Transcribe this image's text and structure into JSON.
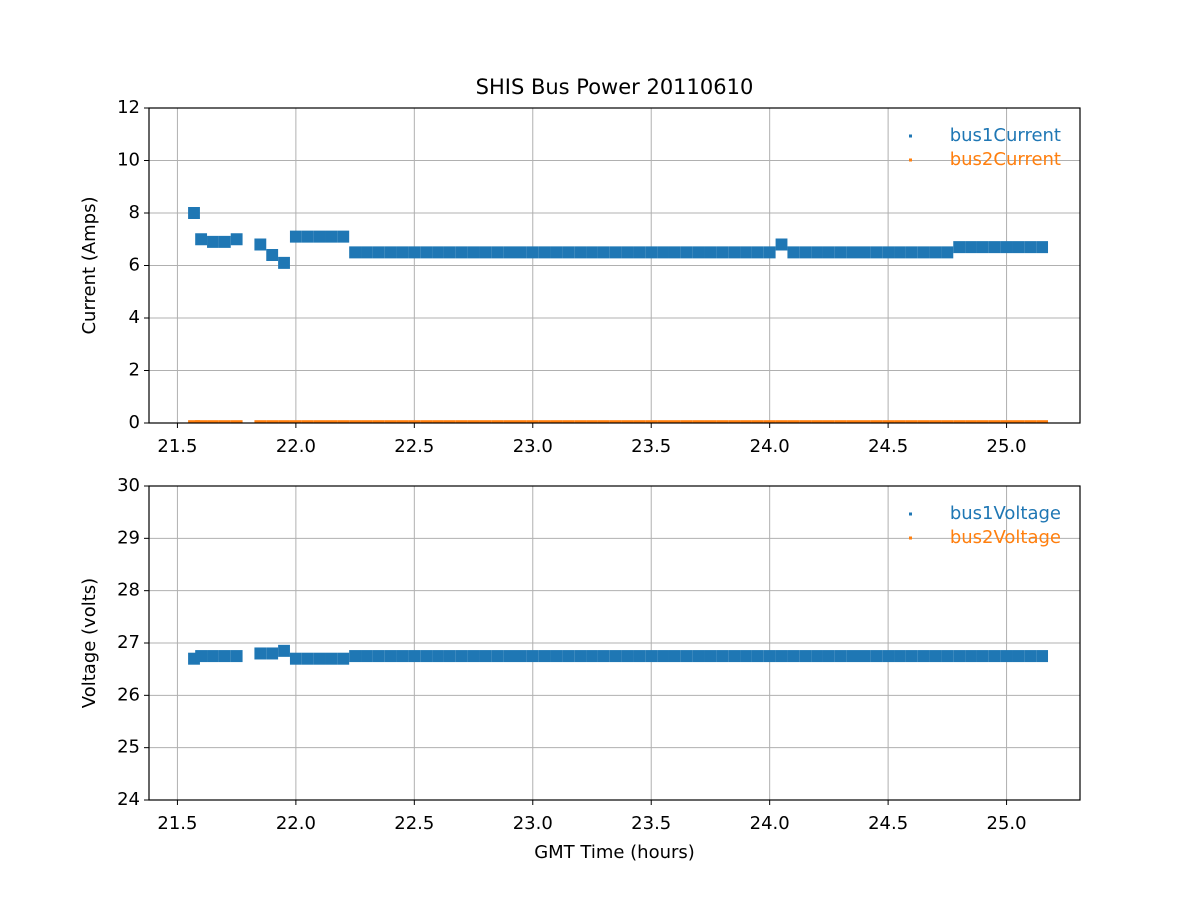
{
  "chart_data": [
    {
      "type": "scatter",
      "title": "SHIS Bus Power 20110610",
      "ylabel": "Current (Amps)",
      "x": [
        21.57,
        21.6,
        21.65,
        21.7,
        21.75,
        21.85,
        21.9,
        21.95,
        22.0,
        22.05,
        22.1,
        22.15,
        22.2,
        22.25,
        22.3,
        22.35,
        22.4,
        22.45,
        22.5,
        22.55,
        22.6,
        22.65,
        22.7,
        22.75,
        22.8,
        22.85,
        22.9,
        22.95,
        23.0,
        23.05,
        23.1,
        23.15,
        23.2,
        23.25,
        23.3,
        23.35,
        23.4,
        23.45,
        23.5,
        23.55,
        23.6,
        23.65,
        23.7,
        23.75,
        23.8,
        23.85,
        23.9,
        23.95,
        24.0,
        24.05,
        24.1,
        24.15,
        24.2,
        24.25,
        24.3,
        24.35,
        24.4,
        24.45,
        24.5,
        24.55,
        24.6,
        24.65,
        24.7,
        24.75,
        24.8,
        24.85,
        24.9,
        24.95,
        25.0,
        25.05,
        25.1,
        25.15
      ],
      "series": [
        {
          "name": "bus1Current",
          "color": "#1f77b4",
          "values": [
            8.0,
            7.0,
            6.9,
            6.9,
            7.0,
            6.8,
            6.4,
            6.1,
            7.1,
            7.1,
            7.1,
            7.1,
            7.1,
            6.5,
            6.5,
            6.5,
            6.5,
            6.5,
            6.5,
            6.5,
            6.5,
            6.5,
            6.5,
            6.5,
            6.5,
            6.5,
            6.5,
            6.5,
            6.5,
            6.5,
            6.5,
            6.5,
            6.5,
            6.5,
            6.5,
            6.5,
            6.5,
            6.5,
            6.5,
            6.5,
            6.5,
            6.5,
            6.5,
            6.5,
            6.5,
            6.5,
            6.5,
            6.5,
            6.5,
            6.8,
            6.5,
            6.5,
            6.5,
            6.5,
            6.5,
            6.5,
            6.5,
            6.5,
            6.5,
            6.5,
            6.5,
            6.5,
            6.5,
            6.5,
            6.7,
            6.7,
            6.7,
            6.7,
            6.7,
            6.7,
            6.7,
            6.7
          ]
        },
        {
          "name": "bus2Current",
          "color": "#ff7f0e",
          "values": [
            0.05,
            0.05,
            0.05,
            0.05,
            0.05,
            0.05,
            0.05,
            0.05,
            0.05,
            0.05,
            0.05,
            0.05,
            0.05,
            0.05,
            0.05,
            0.05,
            0.05,
            0.05,
            0.05,
            0.05,
            0.05,
            0.05,
            0.05,
            0.05,
            0.05,
            0.05,
            0.05,
            0.05,
            0.05,
            0.05,
            0.05,
            0.05,
            0.05,
            0.05,
            0.05,
            0.05,
            0.05,
            0.05,
            0.05,
            0.05,
            0.05,
            0.05,
            0.05,
            0.05,
            0.05,
            0.05,
            0.05,
            0.05,
            0.05,
            0.05,
            0.05,
            0.05,
            0.05,
            0.05,
            0.05,
            0.05,
            0.05,
            0.05,
            0.05,
            0.05,
            0.05,
            0.05,
            0.05,
            0.05,
            0.05,
            0.05,
            0.05,
            0.05,
            0.05,
            0.05,
            0.05,
            0.05
          ]
        }
      ],
      "xlim": [
        21.38,
        25.31
      ],
      "xticks": [
        21.5,
        {
          "value": 22,
          "label": "22.0"
        },
        22.5,
        {
          "value": 23,
          "label": "23.0"
        },
        23.5,
        {
          "value": 24,
          "label": "24.0"
        },
        24.5,
        {
          "value": 25,
          "label": "25.0"
        }
      ],
      "ylim": [
        0,
        12
      ],
      "yticks": [
        0,
        2,
        4,
        6,
        8,
        10,
        12
      ],
      "grid": true,
      "legend": "upper right"
    },
    {
      "type": "scatter",
      "xlabel": "GMT Time (hours)",
      "ylabel": "Voltage (volts)",
      "x": [
        21.57,
        21.6,
        21.65,
        21.7,
        21.75,
        21.85,
        21.9,
        21.95,
        22.0,
        22.05,
        22.1,
        22.15,
        22.2,
        22.25,
        22.3,
        22.35,
        22.4,
        22.45,
        22.5,
        22.55,
        22.6,
        22.65,
        22.7,
        22.75,
        22.8,
        22.85,
        22.9,
        22.95,
        23.0,
        23.05,
        23.1,
        23.15,
        23.2,
        23.25,
        23.3,
        23.35,
        23.4,
        23.45,
        23.5,
        23.55,
        23.6,
        23.65,
        23.7,
        23.75,
        23.8,
        23.85,
        23.9,
        23.95,
        24.0,
        24.05,
        24.1,
        24.15,
        24.2,
        24.25,
        24.3,
        24.35,
        24.4,
        24.45,
        24.5,
        24.55,
        24.6,
        24.65,
        24.7,
        24.75,
        24.8,
        24.85,
        24.9,
        24.95,
        25.0,
        25.05,
        25.1,
        25.15
      ],
      "series": [
        {
          "name": "bus1Voltage",
          "color": "#1f77b4",
          "values": [
            26.7,
            26.75,
            26.75,
            26.75,
            26.75,
            26.8,
            26.8,
            26.85,
            26.7,
            26.7,
            26.7,
            26.7,
            26.7,
            26.75,
            26.75,
            26.75,
            26.75,
            26.75,
            26.75,
            26.75,
            26.75,
            26.75,
            26.75,
            26.75,
            26.75,
            26.75,
            26.75,
            26.75,
            26.75,
            26.75,
            26.75,
            26.75,
            26.75,
            26.75,
            26.75,
            26.75,
            26.75,
            26.75,
            26.75,
            26.75,
            26.75,
            26.75,
            26.75,
            26.75,
            26.75,
            26.75,
            26.75,
            26.75,
            26.75,
            26.75,
            26.75,
            26.75,
            26.75,
            26.75,
            26.75,
            26.75,
            26.75,
            26.75,
            26.75,
            26.75,
            26.75,
            26.75,
            26.75,
            26.75,
            26.75,
            26.75,
            26.75,
            26.75,
            26.75,
            26.75,
            26.75,
            26.75
          ]
        },
        {
          "name": "bus2Voltage",
          "color": "#ff7f0e",
          "values": [
            null,
            null,
            null,
            null,
            null,
            null,
            null,
            null,
            null,
            null,
            null,
            null,
            null,
            null,
            null,
            null,
            null,
            null,
            null,
            null,
            null,
            null,
            null,
            null,
            null,
            null,
            null,
            null,
            null,
            null,
            null,
            null,
            null,
            null,
            null,
            null,
            null,
            null,
            null,
            null,
            null,
            null,
            null,
            null,
            null,
            null,
            null,
            null,
            null,
            null,
            null,
            null,
            null,
            null,
            null,
            null,
            null,
            null,
            null,
            null,
            null,
            null,
            null,
            null,
            null,
            null,
            null,
            null,
            null,
            null,
            null,
            null
          ]
        }
      ],
      "xlim": [
        21.38,
        25.31
      ],
      "xticks": [
        21.5,
        {
          "value": 22,
          "label": "22.0"
        },
        22.5,
        {
          "value": 23,
          "label": "23.0"
        },
        23.5,
        {
          "value": 24,
          "label": "24.0"
        },
        24.5,
        {
          "value": 25,
          "label": "25.0"
        }
      ],
      "ylim": [
        24,
        30
      ],
      "yticks": [
        24,
        25,
        26,
        27,
        28,
        29,
        30
      ],
      "grid": true,
      "legend": "upper right"
    }
  ]
}
